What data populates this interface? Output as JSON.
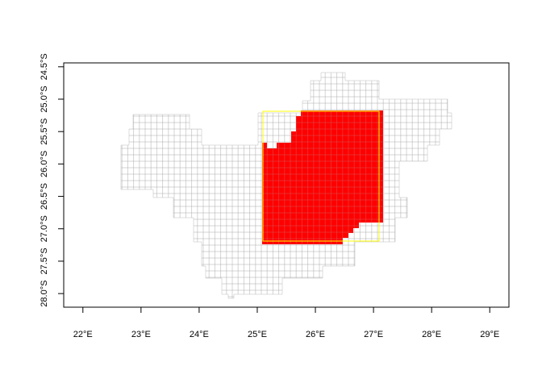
{
  "map": {
    "xlim": [
      21.67,
      29.33
    ],
    "ylim": [
      -28.21,
      -24.44
    ],
    "xticks": [
      {
        "value": 22,
        "label": "22°E"
      },
      {
        "value": 23,
        "label": "23°E"
      },
      {
        "value": 24,
        "label": "24°E"
      },
      {
        "value": 25,
        "label": "25°E"
      },
      {
        "value": 26,
        "label": "26°E"
      },
      {
        "value": 27,
        "label": "27°E"
      },
      {
        "value": 28,
        "label": "28°E"
      },
      {
        "value": 29,
        "label": "29°E"
      }
    ],
    "yticks": [
      {
        "value": -24.5,
        "label": "24.5°S"
      },
      {
        "value": -25,
        "label": "25.0°S"
      },
      {
        "value": -25.5,
        "label": "25.5°S"
      },
      {
        "value": -26,
        "label": "26.0°S"
      },
      {
        "value": -26.5,
        "label": "26.5°S"
      },
      {
        "value": -27,
        "label": "27.0°S"
      },
      {
        "value": -27.5,
        "label": "27.5°S"
      },
      {
        "value": -28,
        "label": "28.0°S"
      }
    ]
  }
}
